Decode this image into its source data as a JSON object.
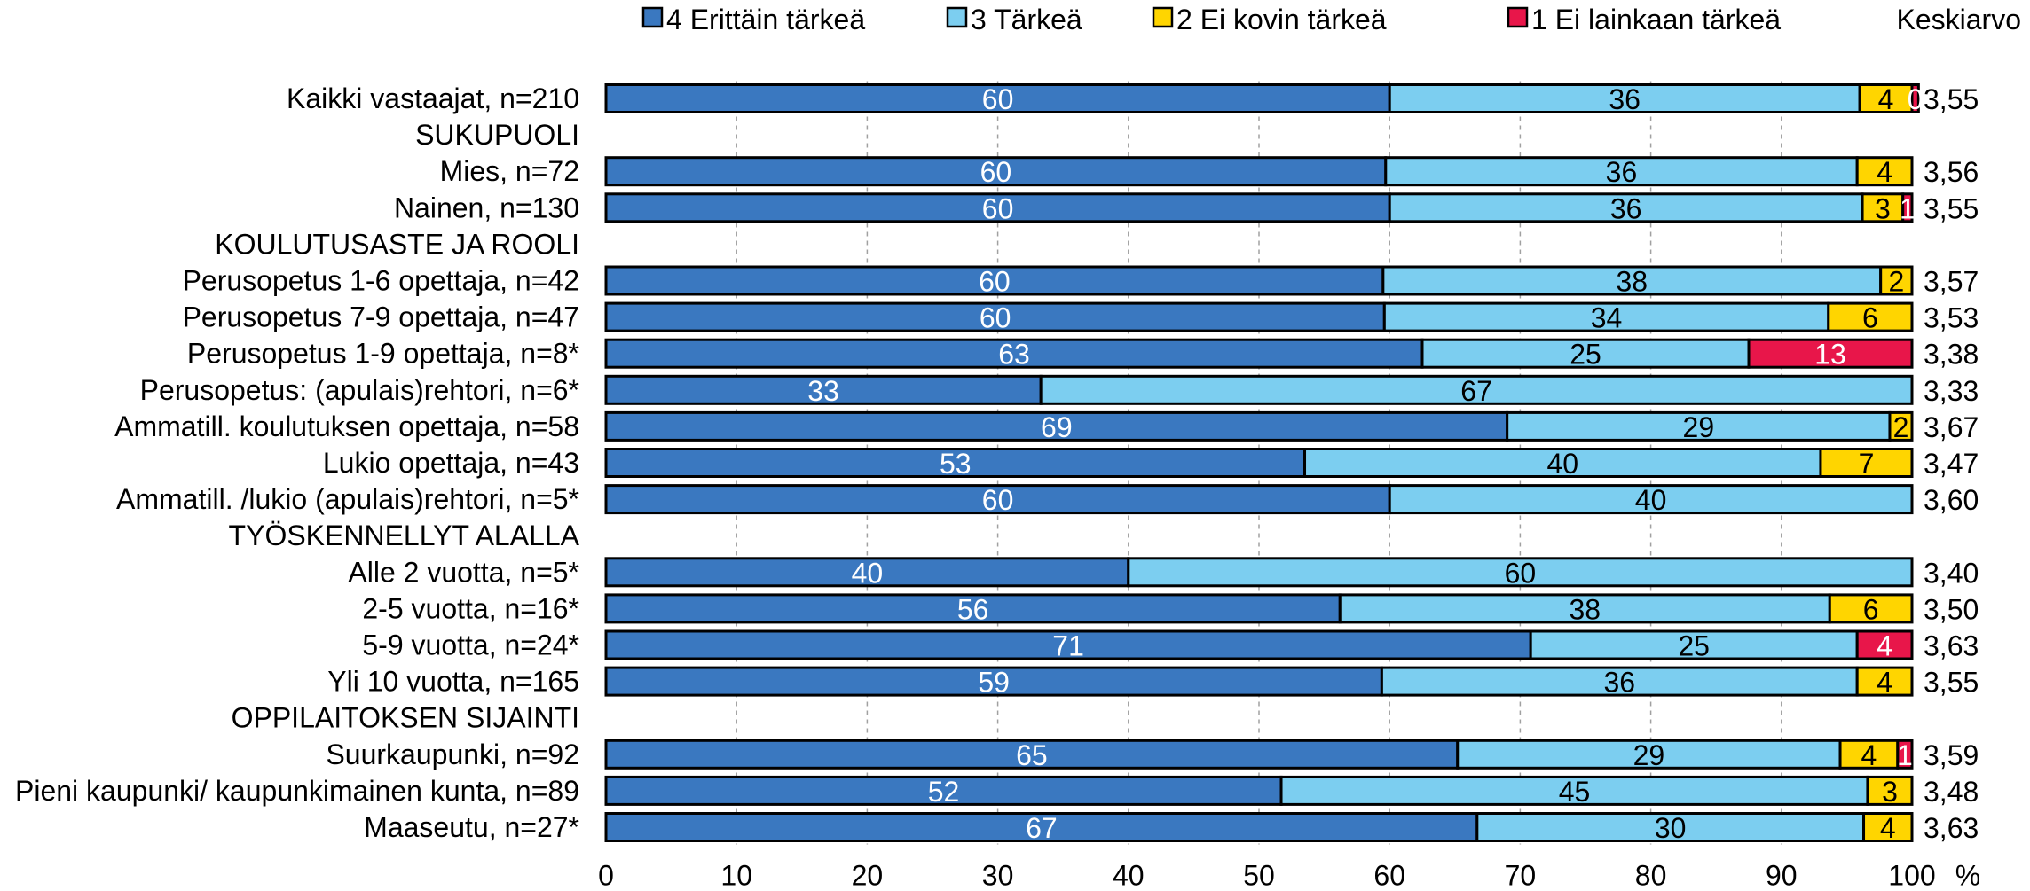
{
  "chart_data": {
    "type": "bar",
    "orientation": "horizontal",
    "stacked": true,
    "legend_position": "top",
    "legend": [
      {
        "name": "4 Erittäin tärkeä",
        "color": "#3a78c0"
      },
      {
        "name": "3 Tärkeä",
        "color": "#7ccef0"
      },
      {
        "name": "2 Ei kovin tärkeä",
        "color": "#ffd500"
      },
      {
        "name": "1 Ei lainkaan tärkeä",
        "color": "#e8164a"
      }
    ],
    "mean_header": "Keskiarvo",
    "x_axis": {
      "min": 0,
      "max": 100,
      "ticks": [
        0,
        10,
        20,
        30,
        40,
        50,
        60,
        70,
        80,
        90,
        100
      ],
      "unit": "%",
      "grid": true
    },
    "rows": [
      {
        "label": "Kaikki vastaajat, n=210",
        "values": [
          60,
          36,
          4,
          0.5
        ],
        "data_labels": [
          "60",
          "36",
          "4",
          "0"
        ],
        "mean": "3,55"
      },
      {
        "label": "SUKUPUOLI",
        "header": true
      },
      {
        "label": "Mies, n=72",
        "values": [
          59.7,
          36.1,
          4.2,
          0
        ],
        "data_labels": [
          "60",
          "36",
          "4",
          ""
        ],
        "mean": "3,56"
      },
      {
        "label": "Nainen, n=130",
        "values": [
          60,
          36.2,
          3.1,
          0.7
        ],
        "data_labels": [
          "60",
          "36",
          "3",
          "1"
        ],
        "mean": "3,55"
      },
      {
        "label": "KOULUTUSASTE JA ROOLI",
        "header": true
      },
      {
        "label": "Perusopetus 1-6 opettaja, n=42",
        "values": [
          59.5,
          38.1,
          2.4,
          0
        ],
        "data_labels": [
          "60",
          "38",
          "2",
          ""
        ],
        "mean": "3,57"
      },
      {
        "label": "Perusopetus 7-9 opettaja, n=47",
        "values": [
          59.6,
          34,
          6.4,
          0
        ],
        "data_labels": [
          "60",
          "34",
          "6",
          ""
        ],
        "mean": "3,53"
      },
      {
        "label": "Perusopetus 1-9 opettaja, n=8*",
        "values": [
          62.5,
          25,
          0,
          12.5
        ],
        "data_labels": [
          "63",
          "25",
          "",
          "13"
        ],
        "mean": "3,38"
      },
      {
        "label": "Perusopetus: (apulais)rehtori, n=6*",
        "values": [
          33.3,
          66.7,
          0,
          0
        ],
        "data_labels": [
          "33",
          "67",
          "",
          ""
        ],
        "mean": "3,33"
      },
      {
        "label": "Ammatill. koulutuksen opettaja, n=58",
        "values": [
          69,
          29.3,
          1.7,
          0
        ],
        "data_labels": [
          "69",
          "29",
          "2",
          ""
        ],
        "mean": "3,67"
      },
      {
        "label": "Lukio opettaja, n=43",
        "values": [
          53.5,
          39.5,
          7,
          0
        ],
        "data_labels": [
          "53",
          "40",
          "7",
          ""
        ],
        "mean": "3,47"
      },
      {
        "label": "Ammatill. /lukio (apulais)rehtori, n=5*",
        "values": [
          60,
          40,
          0,
          0
        ],
        "data_labels": [
          "60",
          "40",
          "",
          ""
        ],
        "mean": "3,60"
      },
      {
        "label": "TYÖSKENNELLYT ALALLA",
        "header": true
      },
      {
        "label": "Alle 2 vuotta, n=5*",
        "values": [
          40,
          60,
          0,
          0
        ],
        "data_labels": [
          "40",
          "60",
          "",
          ""
        ],
        "mean": "3,40"
      },
      {
        "label": "2-5 vuotta, n=16*",
        "values": [
          56.2,
          37.5,
          6.3,
          0
        ],
        "data_labels": [
          "56",
          "38",
          "6",
          ""
        ],
        "mean": "3,50"
      },
      {
        "label": "5-9 vuotta, n=24*",
        "values": [
          70.8,
          25,
          0,
          4.2
        ],
        "data_labels": [
          "71",
          "25",
          "",
          "4"
        ],
        "mean": "3,63"
      },
      {
        "label": "Yli 10 vuotta, n=165",
        "values": [
          59.4,
          36.4,
          4.2,
          0
        ],
        "data_labels": [
          "59",
          "36",
          "4",
          ""
        ],
        "mean": "3,55"
      },
      {
        "label": "OPPILAITOKSEN SIJAINTI",
        "header": true
      },
      {
        "label": "Suurkaupunki, n=92",
        "values": [
          65.2,
          29.3,
          4.4,
          1.1
        ],
        "data_labels": [
          "65",
          "29",
          "4",
          "1"
        ],
        "mean": "3,59"
      },
      {
        "label": "Pieni kaupunki/ kaupunkimainen kunta, n=89",
        "values": [
          51.7,
          44.9,
          3.4,
          0
        ],
        "data_labels": [
          "52",
          "45",
          "3",
          ""
        ],
        "mean": "3,48"
      },
      {
        "label": "Maaseutu, n=27*",
        "values": [
          66.7,
          29.6,
          3.7,
          0
        ],
        "data_labels": [
          "67",
          "30",
          "4",
          ""
        ],
        "mean": "3,63"
      }
    ]
  }
}
